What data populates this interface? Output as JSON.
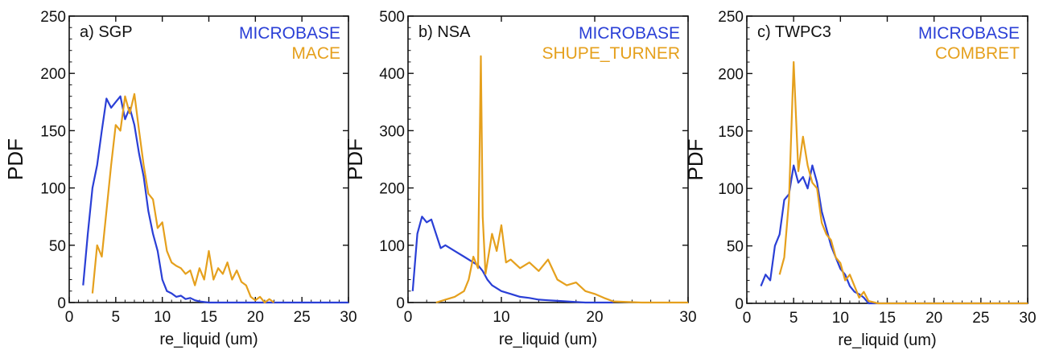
{
  "chart_data": [
    {
      "type": "line",
      "title": "a)  SGP",
      "xlabel": "re_liquid (um)",
      "ylabel": "PDF",
      "xlim": [
        0,
        30
      ],
      "ylim": [
        0,
        250
      ],
      "xticks": [
        "0",
        "5",
        "10",
        "15",
        "20",
        "25",
        "30"
      ],
      "yticks": [
        "0",
        "50",
        "100",
        "150",
        "200",
        "250"
      ],
      "legend_position": "top-right",
      "series": [
        {
          "name": "MICROBASE",
          "color": "#2a3fd6",
          "x": [
            1.5,
            2,
            2.5,
            3,
            3.5,
            4,
            4.5,
            5,
            5.5,
            6,
            6.5,
            7,
            7.5,
            8,
            8.5,
            9,
            9.5,
            10,
            10.5,
            11,
            11.5,
            12,
            12.5,
            13,
            13.5,
            14,
            15,
            16,
            18,
            20,
            25,
            30
          ],
          "y": [
            15,
            60,
            100,
            120,
            150,
            178,
            170,
            175,
            180,
            160,
            170,
            155,
            130,
            110,
            80,
            60,
            45,
            20,
            10,
            8,
            5,
            6,
            3,
            4,
            2,
            1,
            0,
            0,
            0,
            0,
            0,
            0
          ]
        },
        {
          "name": "MACE",
          "color": "#e5a01d",
          "x": [
            2.5,
            3,
            3.5,
            4,
            4.5,
            5,
            5.5,
            6,
            6.5,
            7,
            7.5,
            8,
            8.5,
            9,
            9.5,
            10,
            10.5,
            11,
            11.5,
            12,
            12.5,
            13,
            13.5,
            14,
            14.5,
            15,
            15.5,
            16,
            16.5,
            17,
            17.5,
            18,
            18.5,
            19,
            19.5,
            20,
            20.5,
            21,
            21.5,
            22
          ],
          "y": [
            8,
            50,
            40,
            80,
            120,
            155,
            150,
            180,
            165,
            182,
            150,
            120,
            95,
            90,
            65,
            70,
            45,
            35,
            32,
            30,
            25,
            28,
            15,
            30,
            20,
            45,
            20,
            30,
            25,
            35,
            20,
            28,
            18,
            15,
            5,
            2,
            5,
            0,
            3,
            0
          ]
        }
      ]
    },
    {
      "type": "line",
      "title": "b)  NSA",
      "xlabel": "re_liquid (um)",
      "ylabel": "PDF",
      "xlim": [
        0,
        30
      ],
      "ylim": [
        0,
        500
      ],
      "xticks": [
        "0",
        "10",
        "20",
        "30"
      ],
      "yticks": [
        "0",
        "100",
        "200",
        "300",
        "400",
        "500"
      ],
      "legend_position": "top-right",
      "series": [
        {
          "name": "MICROBASE",
          "color": "#2a3fd6",
          "x": [
            0.5,
            1,
            1.5,
            2,
            2.5,
            3,
            3.5,
            4,
            5,
            6,
            7,
            7.5,
            8,
            8.5,
            9,
            10,
            11,
            12,
            13,
            14,
            15,
            16,
            17,
            18,
            19,
            20,
            22
          ],
          "y": [
            20,
            120,
            150,
            140,
            145,
            120,
            95,
            100,
            90,
            80,
            70,
            65,
            55,
            40,
            30,
            20,
            15,
            10,
            8,
            5,
            4,
            3,
            2,
            1,
            0,
            0,
            0
          ]
        },
        {
          "name": "SHUPE_TURNER",
          "color": "#e5a01d",
          "x": [
            3,
            4,
            5,
            6,
            6.5,
            7,
            7.5,
            7.8,
            8,
            8.3,
            8.6,
            9,
            9.5,
            10,
            10.5,
            11,
            12,
            13,
            14,
            15,
            16,
            17,
            18,
            19,
            20,
            21,
            22,
            25,
            30
          ],
          "y": [
            0,
            5,
            10,
            20,
            40,
            80,
            60,
            430,
            150,
            50,
            80,
            120,
            90,
            135,
            70,
            75,
            60,
            70,
            55,
            75,
            40,
            30,
            35,
            20,
            15,
            8,
            2,
            0,
            0
          ]
        }
      ]
    },
    {
      "type": "line",
      "title": "c)  TWPC3",
      "xlabel": "re_liquid (um)",
      "ylabel": "PDF",
      "xlim": [
        0,
        30
      ],
      "ylim": [
        0,
        250
      ],
      "xticks": [
        "0",
        "5",
        "10",
        "15",
        "20",
        "25",
        "30"
      ],
      "yticks": [
        "0",
        "50",
        "100",
        "150",
        "200",
        "250"
      ],
      "legend_position": "top-right",
      "series": [
        {
          "name": "MICROBASE",
          "color": "#2a3fd6",
          "x": [
            1.5,
            2,
            2.5,
            3,
            3.5,
            4,
            4.5,
            5,
            5.5,
            6,
            6.5,
            7,
            7.5,
            8,
            8.5,
            9,
            9.5,
            10,
            10.5,
            11,
            11.5,
            12,
            12.5,
            13,
            14,
            30
          ],
          "y": [
            15,
            25,
            20,
            50,
            60,
            90,
            95,
            120,
            105,
            110,
            100,
            120,
            105,
            80,
            65,
            50,
            40,
            30,
            25,
            15,
            10,
            8,
            5,
            0,
            0,
            0
          ]
        },
        {
          "name": "COMBRET",
          "color": "#e5a01d",
          "x": [
            3.5,
            4,
            4.5,
            5,
            5.5,
            6,
            6.5,
            7,
            7.5,
            8,
            8.5,
            9,
            9.5,
            10,
            10.5,
            11,
            11.5,
            12,
            12.5,
            13,
            14,
            20,
            30
          ],
          "y": [
            25,
            40,
            90,
            210,
            115,
            145,
            120,
            105,
            100,
            70,
            60,
            55,
            40,
            35,
            20,
            25,
            15,
            5,
            10,
            2,
            0,
            0,
            0
          ]
        }
      ]
    }
  ]
}
